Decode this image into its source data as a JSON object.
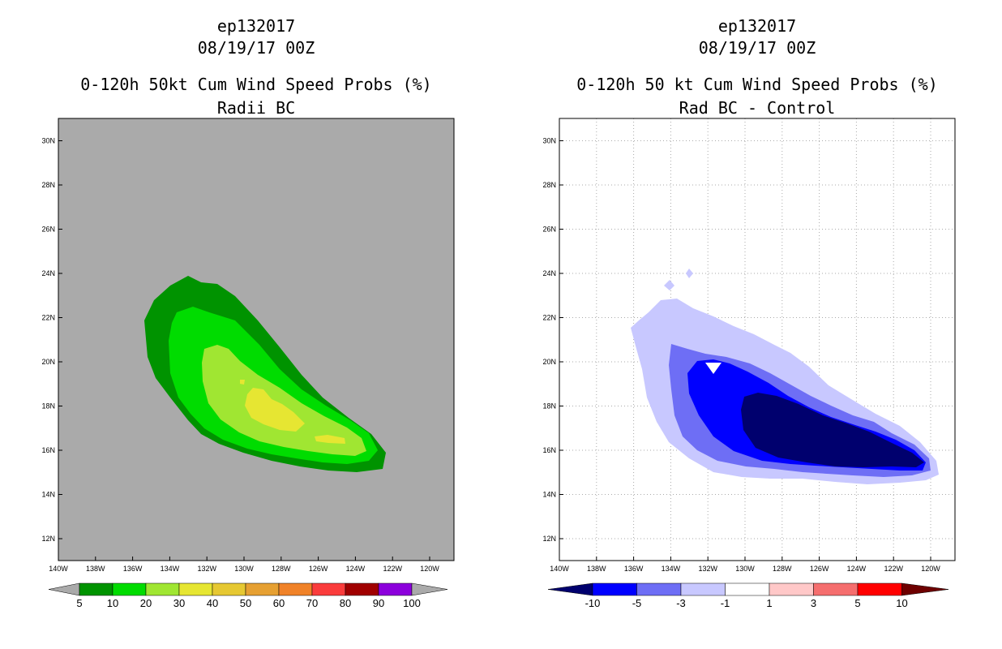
{
  "chart_data": [
    {
      "type": "contour-map",
      "storm": "ep132017",
      "datetime": "08/19/17 00Z",
      "title": "0-120h 50kt Cum Wind Speed Probs (%)",
      "subtitle": "Radii BC",
      "xlabels": [
        "140W",
        "138W",
        "136W",
        "134W",
        "132W",
        "130W",
        "128W",
        "126W",
        "124W",
        "122W",
        "120W"
      ],
      "ylabels": [
        "12N",
        "14N",
        "16N",
        "18N",
        "20N",
        "22N",
        "24N",
        "26N",
        "28N",
        "30N"
      ],
      "colorbar": {
        "labels": [
          "5",
          "10",
          "20",
          "30",
          "40",
          "50",
          "60",
          "70",
          "80",
          "90",
          "100"
        ],
        "colors": [
          "#009300",
          "#00dc00",
          "#a0e632",
          "#e6e632",
          "#e6c832",
          "#e6a032",
          "#f08228",
          "#fa3c3c",
          "#a00000",
          "#8c00dc"
        ]
      }
    },
    {
      "type": "contour-map",
      "storm": "ep132017",
      "datetime": "08/19/17 00Z",
      "title": "0-120h 50 kt Cum Wind Speed Probs (%)",
      "subtitle": "Rad BC - Control",
      "xlabels": [
        "140W",
        "138W",
        "136W",
        "134W",
        "132W",
        "130W",
        "128W",
        "126W",
        "124W",
        "122W",
        "120W"
      ],
      "ylabels": [
        "12N",
        "14N",
        "16N",
        "18N",
        "20N",
        "22N",
        "24N",
        "26N",
        "28N",
        "30N"
      ],
      "colorbar": {
        "labels": [
          "-10",
          "-5",
          "-3",
          "-1",
          "1",
          "3",
          "5",
          "10"
        ],
        "colors": [
          "#00006e",
          "#0000ff",
          "#6e6ef5",
          "#c8c8ff",
          "#ffffff",
          "#ffc8c8",
          "#f56e6e",
          "#ff0000",
          "#6e0000"
        ]
      }
    }
  ]
}
